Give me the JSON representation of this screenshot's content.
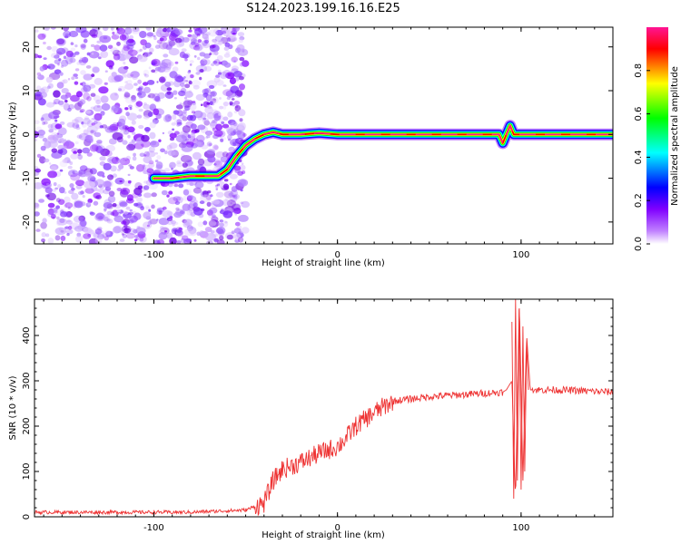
{
  "page": {
    "title": "S124.2023.199.16.16.E25"
  },
  "chart_data": [
    {
      "type": "heatmap",
      "xlabel": "Height of straight line (km)",
      "ylabel": "Frequency (Hz)",
      "xlim": [
        -165,
        150
      ],
      "ylim": [
        -25,
        24.5
      ],
      "xticks": [
        -100,
        0,
        100
      ],
      "yticks": [
        -20,
        -10,
        0,
        10,
        20
      ],
      "colorbar": {
        "label": "Normalized spectral amplitude",
        "range": [
          0.0,
          1.0
        ],
        "ticks": [
          0.0,
          0.2,
          0.4,
          0.6,
          0.8
        ],
        "colors": [
          "#ffffff",
          "#8000ff",
          "#0000ff",
          "#00ffff",
          "#00ff00",
          "#ffff00",
          "#ff0000",
          "#ff0080"
        ]
      },
      "ridge": {
        "x": [
          -100,
          -90,
          -80,
          -65,
          -60,
          -55,
          -50,
          -45,
          -40,
          -35,
          -30,
          -20,
          -10,
          0,
          10,
          30,
          60,
          88,
          90,
          92,
          94,
          96,
          100,
          120,
          150
        ],
        "y": [
          -10,
          -10,
          -9.5,
          -9.5,
          -8,
          -5,
          -2.5,
          -1,
          0,
          0.5,
          0,
          0,
          0.3,
          0,
          0,
          0,
          0,
          0,
          -2,
          0,
          2,
          0,
          0,
          0,
          0
        ]
      },
      "noise_region_x": [
        -165,
        -60
      ]
    },
    {
      "type": "line",
      "xlabel": "Height of straight line (km)",
      "ylabel": "SNR (10 * v/v)",
      "xlim": [
        -165,
        150
      ],
      "ylim": [
        0,
        480
      ],
      "xticks": [
        -100,
        0,
        100
      ],
      "yticks": [
        0,
        100,
        200,
        300,
        400
      ],
      "color": "#ee3333",
      "trend": {
        "x": [
          -165,
          -80,
          -50,
          -40,
          -35,
          -30,
          -20,
          -10,
          0,
          5,
          10,
          20,
          30,
          50,
          70,
          90,
          92,
          95,
          97,
          99,
          101,
          103,
          105,
          120,
          150
        ],
        "y": [
          10,
          10,
          15,
          30,
          80,
          105,
          120,
          140,
          155,
          175,
          200,
          230,
          255,
          265,
          270,
          275,
          280,
          300,
          35,
          480,
          80,
          400,
          280,
          280,
          275
        ]
      }
    }
  ]
}
